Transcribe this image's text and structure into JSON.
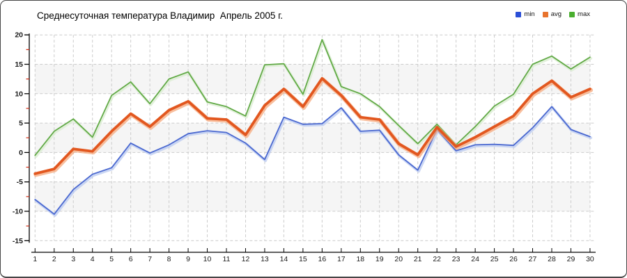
{
  "frame": {
    "title": "Среднесуточная температура Владимир  Апрель 2005 г."
  },
  "legend": [
    {
      "label": "min",
      "color": "#2b4fd7"
    },
    {
      "label": "avg",
      "color": "#e8732d"
    },
    {
      "label": "max",
      "color": "#4aaf2f"
    }
  ],
  "chart_data": {
    "type": "line",
    "title": "Среднесуточная температура Владимир  Апрель 2005 г.",
    "xlabel": "",
    "ylabel": "",
    "x": [
      1,
      2,
      3,
      4,
      5,
      6,
      7,
      8,
      9,
      10,
      11,
      12,
      13,
      14,
      15,
      16,
      17,
      18,
      19,
      20,
      21,
      22,
      23,
      24,
      25,
      26,
      27,
      28,
      29,
      30
    ],
    "ylim": [
      -15,
      20
    ],
    "yticks": [
      20,
      15,
      10,
      5,
      0,
      -5,
      -10,
      -15
    ],
    "minor_yticks": [
      17.5,
      12.5,
      7.5,
      2.5,
      -2.5,
      -7.5,
      -12.5
    ],
    "grid": {
      "show": true,
      "line_color": "#cbcbcb",
      "dash": "4 3",
      "band_color": "#f5f5f5"
    },
    "axis": {
      "color": "#000000",
      "minor_tick_color": "#d32b12",
      "label_color": "#1a1a1a"
    },
    "legend_position": "top-right",
    "series": [
      {
        "name": "min",
        "color": "#4a68d0",
        "halo": "#b9c9f0",
        "values": [
          -8,
          -10.5,
          -6.3,
          -3.7,
          -2.6,
          1.6,
          -0.1,
          1.3,
          3.2,
          3.7,
          3.4,
          1.6,
          -1.2,
          6.0,
          4.8,
          4.9,
          7.6,
          3.6,
          3.8,
          -0.4,
          -3.0,
          3.9,
          0.3,
          1.3,
          1.4,
          1.2,
          4.2,
          7.8,
          3.9,
          2.7
        ]
      },
      {
        "name": "avg",
        "color": "#e2571f",
        "halo": "#f5a97d",
        "values": [
          -3.6,
          -2.8,
          0.6,
          0.2,
          3.6,
          6.6,
          4.4,
          7.2,
          8.7,
          5.8,
          5.6,
          3.0,
          8.0,
          10.8,
          7.8,
          12.6,
          9.7,
          6.0,
          5.6,
          1.5,
          -0.4,
          4.3,
          1.0,
          2.6,
          4.4,
          6.2,
          10.0,
          12.2,
          9.4,
          10.8
        ]
      },
      {
        "name": "max",
        "color": "#62aa47",
        "halo": "#d9ecd0",
        "values": [
          -0.5,
          3.6,
          5.7,
          2.6,
          9.7,
          12.0,
          8.3,
          12.5,
          13.7,
          8.6,
          7.8,
          6.2,
          14.9,
          15.1,
          9.9,
          19.2,
          11.2,
          10.0,
          7.8,
          4.6,
          1.5,
          4.8,
          1.3,
          4.4,
          7.9,
          9.9,
          15.0,
          16.4,
          14.2,
          16.2
        ]
      }
    ]
  }
}
